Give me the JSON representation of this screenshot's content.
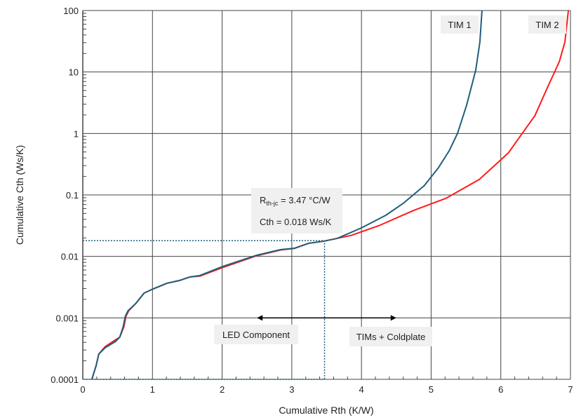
{
  "chart_data": {
    "type": "line",
    "xlabel": "Cumulative Rth (K/W)",
    "ylabel": "Cumulative Cth (Ws/K)",
    "xlim": [
      0,
      7
    ],
    "ylim": [
      0.0001,
      100
    ],
    "yscale": "log",
    "grid": true,
    "x_ticks": [
      "0",
      "1",
      "2",
      "3",
      "4",
      "5",
      "6",
      "7"
    ],
    "y_ticks": [
      "0.0001",
      "0.001",
      "0.01",
      "0.1",
      "1",
      "10",
      "100"
    ],
    "series": [
      {
        "name": "TIM 1",
        "color": "#1f5f7a",
        "x": [
          0.13,
          0.19,
          0.23,
          0.32,
          0.47,
          0.53,
          0.58,
          0.61,
          0.65,
          0.76,
          0.88,
          1.01,
          1.21,
          1.39,
          1.54,
          1.68,
          2.01,
          2.49,
          2.84,
          3.04,
          3.24,
          3.46,
          3.65,
          4.0,
          4.35,
          4.6,
          4.9,
          5.1,
          5.26,
          5.38,
          5.51,
          5.64,
          5.7,
          5.73
        ],
        "y": [
          0.0001,
          0.000165,
          0.000258,
          0.000326,
          0.000413,
          0.000484,
          0.000718,
          0.00106,
          0.00131,
          0.00171,
          0.00253,
          0.00296,
          0.00366,
          0.00406,
          0.00463,
          0.00488,
          0.00687,
          0.0104,
          0.0129,
          0.0136,
          0.0163,
          0.0177,
          0.0196,
          0.0291,
          0.0467,
          0.073,
          0.141,
          0.272,
          0.524,
          1.01,
          2.9,
          10.7,
          30.7,
          100
        ]
      },
      {
        "name": "TIM 2",
        "color": "#ff1a1a",
        "x": [
          0.13,
          0.19,
          0.23,
          0.32,
          0.47,
          0.53,
          0.59,
          0.62,
          0.66,
          0.76,
          0.88,
          1.01,
          1.21,
          1.39,
          1.54,
          1.68,
          2.01,
          2.49,
          2.84,
          3.04,
          3.24,
          3.46,
          3.85,
          4.25,
          4.75,
          5.21,
          5.69,
          6.11,
          6.31,
          6.49,
          6.67,
          6.84,
          6.92,
          6.97
        ],
        "y": [
          0.0001,
          0.000165,
          0.000258,
          0.00034,
          0.00044,
          0.000484,
          0.000718,
          0.00106,
          0.00131,
          0.00171,
          0.00253,
          0.00296,
          0.00366,
          0.00406,
          0.00463,
          0.00478,
          0.0066,
          0.0102,
          0.0127,
          0.0135,
          0.0163,
          0.0177,
          0.0219,
          0.0316,
          0.056,
          0.0877,
          0.178,
          0.484,
          1.01,
          1.95,
          5.6,
          14.7,
          30.7,
          100
        ]
      }
    ],
    "annotations": {
      "rth_label": "R",
      "rth_sub": "th-jc",
      "rth_value": " = 3.47 °C/W",
      "cth_label": "Cth = 0.018 Ws/K",
      "marker": {
        "x": 3.47,
        "y": 0.018
      },
      "arrow": {
        "x_from": 2.5,
        "x_to": 4.5,
        "y": 0.001
      },
      "left_region": "LED Component",
      "right_region": "TIMs + Coldplate"
    }
  }
}
